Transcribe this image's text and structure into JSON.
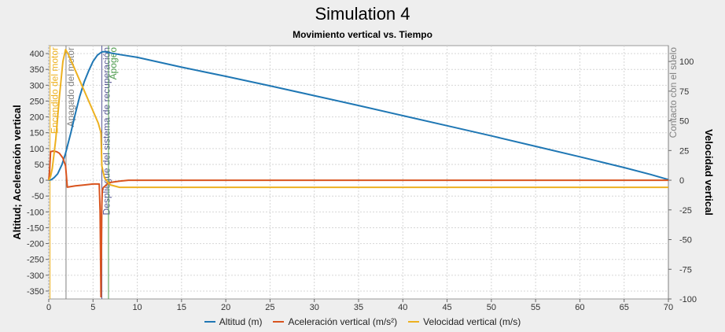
{
  "title": "Simulation 4",
  "subtitle": "Movimiento vertical vs. Tiempo",
  "colors": {
    "altitude": "#1f77b4",
    "acceleration": "#d9541e",
    "velocity": "#edb120",
    "event_motor_on": "#edb120",
    "event_motor_off": "#808080",
    "event_recovery": "#5a5a96",
    "event_apogee": "#4c9b4c",
    "event_ground": "#808080"
  },
  "chart_data": {
    "type": "line",
    "title": "Simulation 4",
    "subtitle": "Movimiento vertical vs. Tiempo",
    "xlim": [
      0,
      70
    ],
    "x_ticks": [
      0,
      5,
      10,
      15,
      20,
      25,
      30,
      35,
      40,
      45,
      50,
      55,
      60,
      65,
      70
    ],
    "y_left": {
      "label": "Altitud; Aceleración vertical",
      "lim": [
        -375,
        425
      ],
      "ticks": [
        400,
        350,
        300,
        250,
        200,
        150,
        100,
        50,
        0,
        -50,
        -100,
        -150,
        -200,
        -250,
        -300,
        -350
      ]
    },
    "y_right": {
      "label": "Velocidad vertical",
      "lim": [
        -100,
        113.33
      ],
      "ticks": [
        100,
        75,
        50,
        25,
        0,
        -25,
        -50,
        -75,
        -100
      ]
    },
    "grid": true,
    "legend_position": "bottom",
    "series": [
      {
        "name": "Altitud (m)",
        "axis": "left",
        "x": [
          0,
          0.3,
          0.6,
          1,
          1.5,
          1.9,
          2.5,
          3,
          3.5,
          4,
          4.5,
          5,
          5.5,
          6,
          6.3,
          6.7,
          7,
          8,
          10,
          15,
          20,
          25,
          30,
          35,
          40,
          45,
          50,
          55,
          60,
          65,
          68,
          70
        ],
        "y": [
          0,
          2,
          8,
          20,
          50,
          85,
          150,
          210,
          265,
          310,
          345,
          375,
          395,
          405,
          406,
          404,
          402,
          397,
          388,
          357,
          328,
          298,
          267,
          236,
          204,
          172,
          140,
          107,
          74,
          40,
          18,
          2
        ]
      },
      {
        "name": "Aceleración vertical (m/s²)",
        "axis": "left",
        "x": [
          0,
          0.1,
          0.2,
          0.5,
          0.9,
          1.2,
          1.6,
          1.9,
          2.1,
          3,
          4,
          5,
          5.7,
          5.8,
          5.9,
          6.0,
          6.05,
          6.2,
          6.4,
          6.6,
          6.8,
          7.2,
          8,
          9,
          10,
          20,
          30,
          40,
          50,
          60,
          70
        ],
        "y": [
          0,
          30,
          90,
          92,
          90,
          85,
          70,
          45,
          -22,
          -18,
          -15,
          -12,
          -12,
          -100,
          -368,
          -80,
          -30,
          -22,
          -18,
          -12,
          -8,
          -6,
          -3,
          0,
          0,
          0,
          0,
          0,
          0,
          0,
          0
        ]
      },
      {
        "name": "Velocidad vertical (m/s)",
        "axis": "right",
        "x": [
          0,
          0.2,
          0.4,
          0.8,
          1.2,
          1.6,
          1.9,
          2.2,
          2.8,
          3.5,
          4.2,
          4.9,
          5.6,
          5.9,
          6.0,
          6.3,
          6.7,
          7,
          7.5,
          8,
          9,
          10,
          20,
          30,
          40,
          50,
          60,
          70
        ],
        "y": [
          0,
          3,
          10,
          35,
          70,
          100,
          110,
          106,
          96,
          84,
          72,
          60,
          48,
          40,
          12,
          2,
          -2,
          -4,
          -5,
          -6,
          -6,
          -6,
          -6,
          -6,
          -6,
          -6,
          -6,
          -6
        ]
      }
    ],
    "events": [
      {
        "label": "Encendido del motor",
        "x": 0.15
      },
      {
        "label": "Apagado del motor",
        "x": 1.95
      },
      {
        "label": "Despliegue del sistema de recuperación",
        "x": 6.0
      },
      {
        "label": "Apogeo",
        "x": 6.75
      },
      {
        "label": "Contacto con el suelo",
        "x": 70
      }
    ]
  }
}
